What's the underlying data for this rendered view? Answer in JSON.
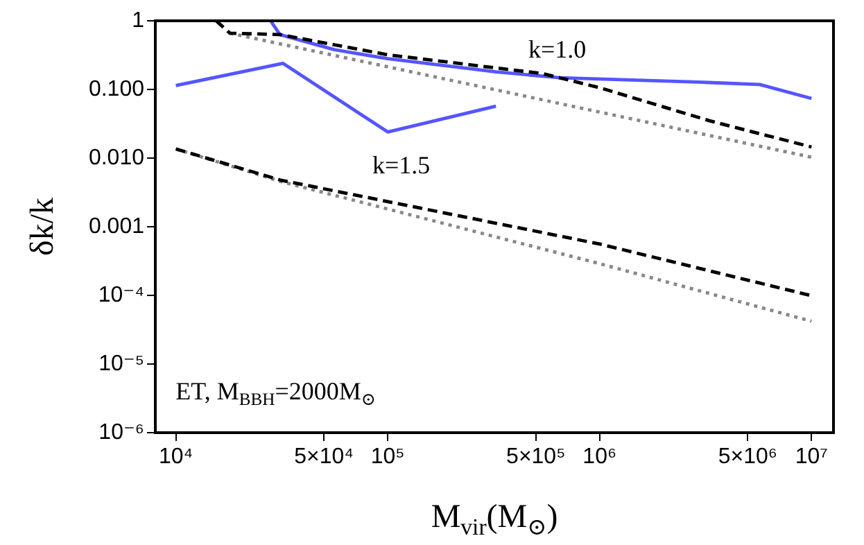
{
  "chart_data": {
    "type": "line",
    "xlabel": "M$_{vir}$(M$_{⊙}$)",
    "ylabel": "δk/k",
    "log": "xy",
    "marker": "none",
    "xlim": [
      8000,
      12700000
    ],
    "ylim": [
      1e-06,
      1
    ],
    "xticks": [
      {
        "value": 10000,
        "label": "10⁴"
      },
      {
        "value": 50000,
        "label": "5×10⁴"
      },
      {
        "value": 100000,
        "label": "10⁵"
      },
      {
        "value": 500000,
        "label": "5×10⁵"
      },
      {
        "value": 1000000,
        "label": "10⁶"
      },
      {
        "value": 5000000,
        "label": "5×10⁶"
      },
      {
        "value": 10000000,
        "label": "10⁷"
      }
    ],
    "yticks": [
      1,
      {
        "value": 0.1,
        "label": "0.100"
      },
      {
        "value": 0.01,
        "label": "0.010"
      },
      {
        "value": 0.001,
        "label": "0.001"
      },
      {
        "value": 0.0001,
        "label": "10⁻⁴"
      },
      {
        "value": 1e-05,
        "label": "10⁻⁵"
      },
      {
        "value": 1e-06,
        "label": "10⁻⁶"
      }
    ],
    "series": [
      {
        "line_style": "dashed",
        "color": "#000000",
        "x": [
          15500,
          18000,
          31000,
          100000,
          540000,
          1000000,
          3300000,
          10000000
        ],
        "values": [
          1,
          0.66,
          0.63,
          0.32,
          0.17,
          0.106,
          0.035,
          0.0145
        ]
      },
      {
        "line_style": "dotted",
        "color": "#888888",
        "x": [
          18000,
          10000000
        ],
        "values": [
          0.66,
          0.0103
        ]
      },
      {
        "line_style": "solid",
        "color": "#5555ff",
        "x": [
          28000,
          31000,
          56000,
          100000,
          324000,
          650000,
          3100000,
          5700000,
          10000000
        ],
        "values": [
          1,
          0.63,
          0.38,
          0.28,
          0.18,
          0.148,
          0.127,
          0.118,
          0.074
        ]
      },
      {
        "line_style": "solid",
        "color": "#5555ff",
        "x": [
          10000,
          32000,
          100000,
          324000
        ],
        "values": [
          0.114,
          0.24,
          0.024,
          0.057
        ]
      },
      {
        "line_style": "dashed",
        "color": "#000000",
        "x": [
          10000,
          31000,
          1000000,
          10000000
        ],
        "values": [
          0.0136,
          0.0048,
          0.00056,
          9.9e-05
        ]
      },
      {
        "line_style": "dotted",
        "color": "#888888",
        "x": [
          10000,
          31000,
          1000000,
          10000000
        ],
        "values": [
          0.0136,
          0.0046,
          0.00029,
          4.2e-05
        ]
      }
    ],
    "annotations": [
      "k=1.0",
      "k=1.5",
      "ET, M$_{BBH}$=2000M$_{⊙}$"
    ]
  }
}
